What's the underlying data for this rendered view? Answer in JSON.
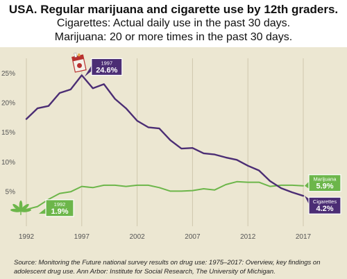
{
  "header": {
    "title": "USA. Regular marijuana and cigarette use by 12th graders.",
    "subtitle_1": "Cigarettes: Actual daily use in the past 30 days.",
    "subtitle_2": "Marijuana: 20 or more times in the past 30 days."
  },
  "source": "Source: Monitoring the Future national survey results on drug use: 1975–2017: Overview, key findings on adolescent drug use. Ann Arbor: Institute for Social Research, The University of Michigan.",
  "colors": {
    "background": "#ece7d2",
    "cigarettes": "#4b2d74",
    "marijuana": "#6cb64a",
    "grid": "#cfc7ad",
    "axis_text": "#555555"
  },
  "chart_data": {
    "type": "line",
    "xlim": [
      1992,
      2017
    ],
    "ylim": [
      0,
      27
    ],
    "x_ticks": [
      "1992",
      "1997",
      "2002",
      "2007",
      "2012",
      "2017"
    ],
    "y_ticks": [
      "5%",
      "10%",
      "15%",
      "20%",
      "25%"
    ],
    "y_tick_values": [
      5,
      10,
      15,
      20,
      25
    ],
    "grid": "vertical lines at x ticks",
    "x": [
      1992,
      1993,
      1994,
      1995,
      1996,
      1997,
      1998,
      1999,
      2000,
      2001,
      2002,
      2003,
      2004,
      2005,
      2006,
      2007,
      2008,
      2009,
      2010,
      2011,
      2012,
      2013,
      2014,
      2015,
      2016,
      2017
    ],
    "series": [
      {
        "key": "cigarettes",
        "values": [
          17.2,
          19.0,
          19.4,
          21.6,
          22.2,
          24.6,
          22.4,
          23.1,
          20.6,
          19.0,
          16.9,
          15.8,
          15.6,
          13.6,
          12.2,
          12.3,
          11.4,
          11.2,
          10.7,
          10.3,
          9.3,
          8.5,
          6.7,
          5.5,
          4.8,
          4.2
        ],
        "label_end": "Cigarettes",
        "value_end": "4.2%",
        "label_peak_year": "1997",
        "value_peak": "24.6%"
      },
      {
        "key": "marijuana",
        "values": [
          1.9,
          2.4,
          3.6,
          4.6,
          4.9,
          5.8,
          5.6,
          6.0,
          6.0,
          5.8,
          6.0,
          6.0,
          5.6,
          5.0,
          5.0,
          5.1,
          5.4,
          5.2,
          6.1,
          6.6,
          6.5,
          6.5,
          5.8,
          6.0,
          6.0,
          5.9
        ],
        "label_end": "Marijuana",
        "value_end": "5.9%",
        "label_start_year": "1992",
        "value_start": "1.9%"
      }
    ]
  }
}
